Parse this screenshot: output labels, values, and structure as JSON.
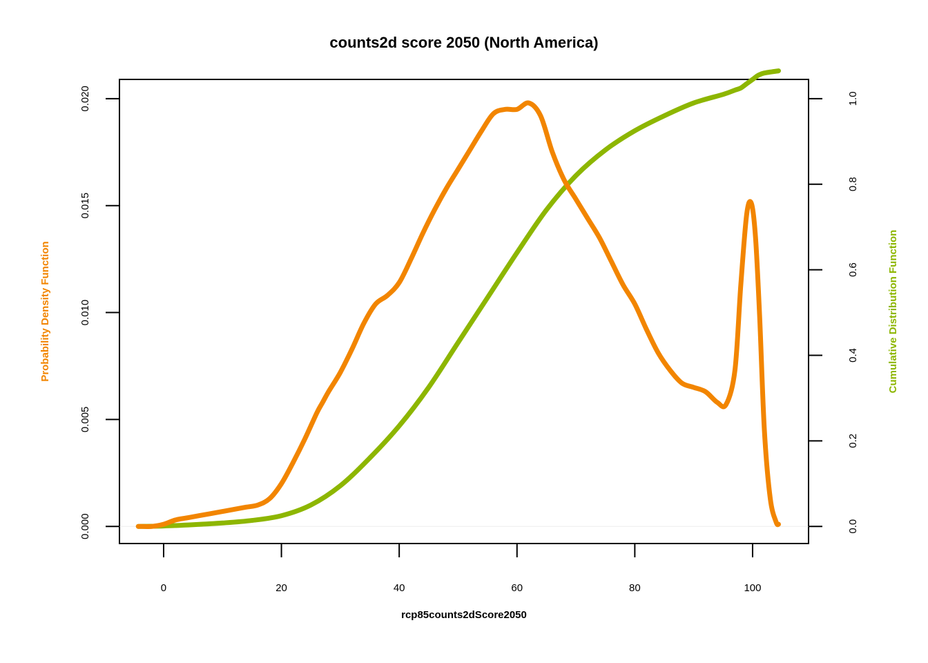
{
  "chart_data": {
    "type": "line",
    "title": "counts2d score 2050 (North America)",
    "xlabel": "rcp85counts2dScore2050",
    "ylabel_left": "Probability Density Function",
    "ylabel_right": "Cumulative Distribution Function",
    "xlim": [
      -7.5,
      109.5
    ],
    "ylim_left": [
      -0.0008,
      0.0209
    ],
    "ylim_right": [
      -0.04,
      1.045
    ],
    "x_ticks": [
      0,
      20,
      40,
      60,
      80,
      100
    ],
    "x_tick_labels": [
      "0",
      "20",
      "40",
      "60",
      "80",
      "100"
    ],
    "y_left_ticks": [
      0.0,
      0.005,
      0.01,
      0.015,
      0.02
    ],
    "y_left_tick_labels": [
      "0.000",
      "0.005",
      "0.010",
      "0.015",
      "0.020"
    ],
    "y_right_ticks": [
      0.0,
      0.2,
      0.4,
      0.6,
      0.8,
      1.0
    ],
    "y_right_tick_labels": [
      "0.0",
      "0.2",
      "0.4",
      "0.6",
      "0.8",
      "1.0"
    ],
    "grid": false,
    "colors": {
      "pdf": "#F28500",
      "cdf": "#8DB600",
      "baseline": "#eeeeee"
    },
    "series": [
      {
        "name": "Probability Density Function",
        "axis": "left",
        "color": "#F28500",
        "x": [
          -4.3,
          -2,
          0,
          2,
          4,
          6,
          8,
          10,
          12,
          14,
          16,
          18,
          20,
          22,
          24,
          26,
          27,
          28,
          30,
          32,
          34,
          36,
          38,
          40,
          42,
          44,
          46,
          48,
          50,
          52,
          54,
          56,
          58,
          60,
          62,
          64,
          66,
          68,
          70,
          72,
          74,
          76,
          78,
          80,
          82,
          84,
          86,
          88,
          90,
          92,
          94,
          95.5,
          97,
          98,
          99,
          99.8,
          100.5,
          101.2,
          102,
          103,
          104,
          104.4
        ],
        "y": [
          0.0,
          0.0,
          0.0001,
          0.0003,
          0.0004,
          0.0005,
          0.0006,
          0.0007,
          0.0008,
          0.0009,
          0.001,
          0.0013,
          0.002,
          0.003,
          0.0041,
          0.0053,
          0.0058,
          0.0063,
          0.0072,
          0.0083,
          0.0095,
          0.0104,
          0.0108,
          0.0114,
          0.0125,
          0.0137,
          0.0148,
          0.0158,
          0.0167,
          0.0176,
          0.0185,
          0.0193,
          0.0195,
          0.0195,
          0.0198,
          0.0192,
          0.0175,
          0.0162,
          0.0153,
          0.0144,
          0.0135,
          0.0124,
          0.0113,
          0.0104,
          0.0092,
          0.0081,
          0.0073,
          0.0067,
          0.0065,
          0.0063,
          0.0058,
          0.0057,
          0.0073,
          0.0113,
          0.0146,
          0.0151,
          0.0135,
          0.0098,
          0.0045,
          0.0013,
          0.0002,
          0.0001
        ]
      },
      {
        "name": "Cumulative Distribution Function",
        "axis": "right",
        "color": "#8DB600",
        "x": [
          -4.3,
          0,
          5,
          10,
          15,
          20,
          25,
          30,
          35,
          40,
          45,
          50,
          55,
          60,
          65,
          70,
          75,
          80,
          85,
          90,
          95,
          97,
          98,
          99,
          100,
          101,
          102,
          104.4
        ],
        "y": [
          0.0,
          0.001,
          0.004,
          0.008,
          0.014,
          0.025,
          0.05,
          0.095,
          0.16,
          0.235,
          0.325,
          0.43,
          0.535,
          0.64,
          0.74,
          0.82,
          0.88,
          0.925,
          0.96,
          0.99,
          1.01,
          1.02,
          1.025,
          1.035,
          1.045,
          1.055,
          1.06,
          1.065
        ]
      }
    ]
  }
}
